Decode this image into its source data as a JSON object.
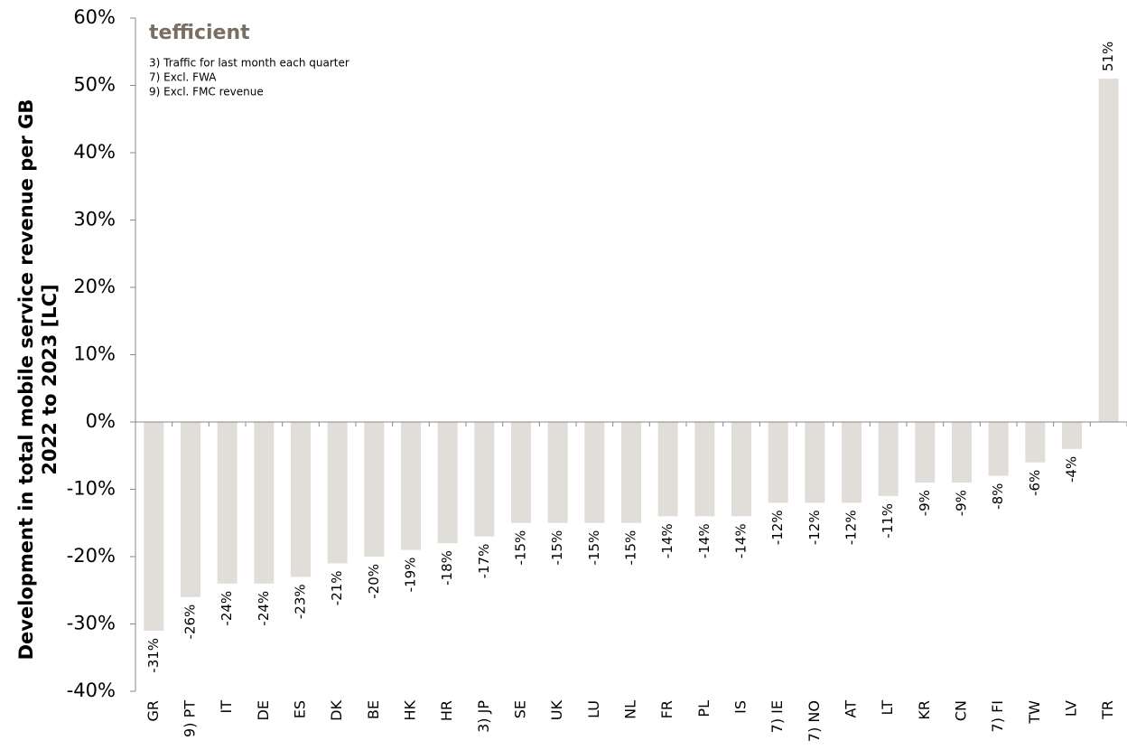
{
  "chart_data": {
    "type": "bar",
    "brand": "tefficient",
    "notes": [
      "3) Traffic for last month each quarter",
      "7) Excl. FWA",
      "9) Excl. FMC revenue"
    ],
    "y_label": [
      "Development in total mobile service revenue per GB",
      "2022 to 2023 [LC]"
    ],
    "categories": [
      "GR",
      "9) PT",
      "IT",
      "DE",
      "ES",
      "DK",
      "BE",
      "HK",
      "HR",
      "3) JP",
      "SE",
      "UK",
      "LU",
      "NL",
      "FR",
      "PL",
      "IS",
      "7) IE",
      "7) NO",
      "AT",
      "LT",
      "KR",
      "CN",
      "7) FI",
      "TW",
      "LV",
      "TR"
    ],
    "values": [
      -31,
      -26,
      -24,
      -24,
      -23,
      -21,
      -20,
      -19,
      -18,
      -17,
      -15,
      -15,
      -15,
      -15,
      -14,
      -14,
      -14,
      -12,
      -12,
      -12,
      -11,
      -9,
      -9,
      -8,
      -6,
      -4,
      51
    ],
    "value_labels": [
      "-31%",
      "-26%",
      "-24%",
      "-24%",
      "-23%",
      "-21%",
      "-20%",
      "-19%",
      "-18%",
      "-17%",
      "-15%",
      "-15%",
      "-15%",
      "-15%",
      "-14%",
      "-14%",
      "-14%",
      "-12%",
      "-12%",
      "-12%",
      "-11%",
      "-9%",
      "-9%",
      "-8%",
      "-6%",
      "-4%",
      "51%"
    ],
    "color": "#e1ddd9",
    "ylim": [
      -40,
      60
    ],
    "yticks": [
      {
        "value": -40,
        "label": "-40%"
      },
      {
        "value": -30,
        "label": "-30%"
      },
      {
        "value": -20,
        "label": "-20%"
      },
      {
        "value": -10,
        "label": "-10%"
      },
      {
        "value": 0,
        "label": "0%"
      },
      {
        "value": 10,
        "label": "10%"
      },
      {
        "value": 20,
        "label": "20%"
      },
      {
        "value": 30,
        "label": "30%"
      },
      {
        "value": 40,
        "label": "40%"
      },
      {
        "value": 50,
        "label": "50%"
      },
      {
        "value": 60,
        "label": "60%"
      }
    ]
  }
}
